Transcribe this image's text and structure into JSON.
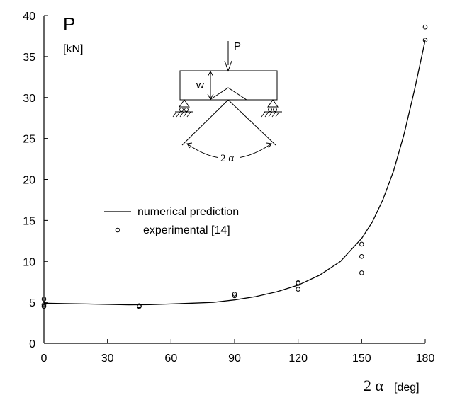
{
  "chart_data": {
    "type": "scatter",
    "ylabel": "P",
    "ylabel_unit": "[kN]",
    "xlabel_symbol": "2 α",
    "xlabel_unit": "[deg]",
    "xlim": [
      0,
      180
    ],
    "ylim": [
      0,
      40
    ],
    "xticks": [
      0,
      30,
      60,
      90,
      120,
      150,
      180
    ],
    "yticks": [
      0,
      5,
      10,
      15,
      20,
      25,
      30,
      35,
      40
    ],
    "grid": false,
    "legend_position": "center-left",
    "series": [
      {
        "name": "numerical prediction",
        "style": "line",
        "x": [
          0,
          10,
          20,
          30,
          40,
          50,
          60,
          70,
          80,
          90,
          100,
          110,
          120,
          130,
          140,
          150,
          155,
          160,
          165,
          170,
          175,
          180
        ],
        "y": [
          4.9,
          4.85,
          4.8,
          4.75,
          4.7,
          4.72,
          4.8,
          4.9,
          5.0,
          5.3,
          5.7,
          6.3,
          7.1,
          8.3,
          10.0,
          12.8,
          14.8,
          17.5,
          21.0,
          25.5,
          31.0,
          37.0
        ]
      },
      {
        "name": "experimental [14]",
        "style": "open-circle",
        "x": [
          0,
          0,
          0,
          45,
          45,
          90,
          90,
          120,
          120,
          120,
          150,
          150,
          150,
          180,
          180
        ],
        "y": [
          5.4,
          4.7,
          4.5,
          4.6,
          4.5,
          6.0,
          5.8,
          7.4,
          7.3,
          6.6,
          12.1,
          10.6,
          8.6,
          38.6,
          37.0
        ]
      }
    ],
    "inset": {
      "load_label": "P",
      "depth_label": "w",
      "angle_label": "2 α"
    }
  }
}
